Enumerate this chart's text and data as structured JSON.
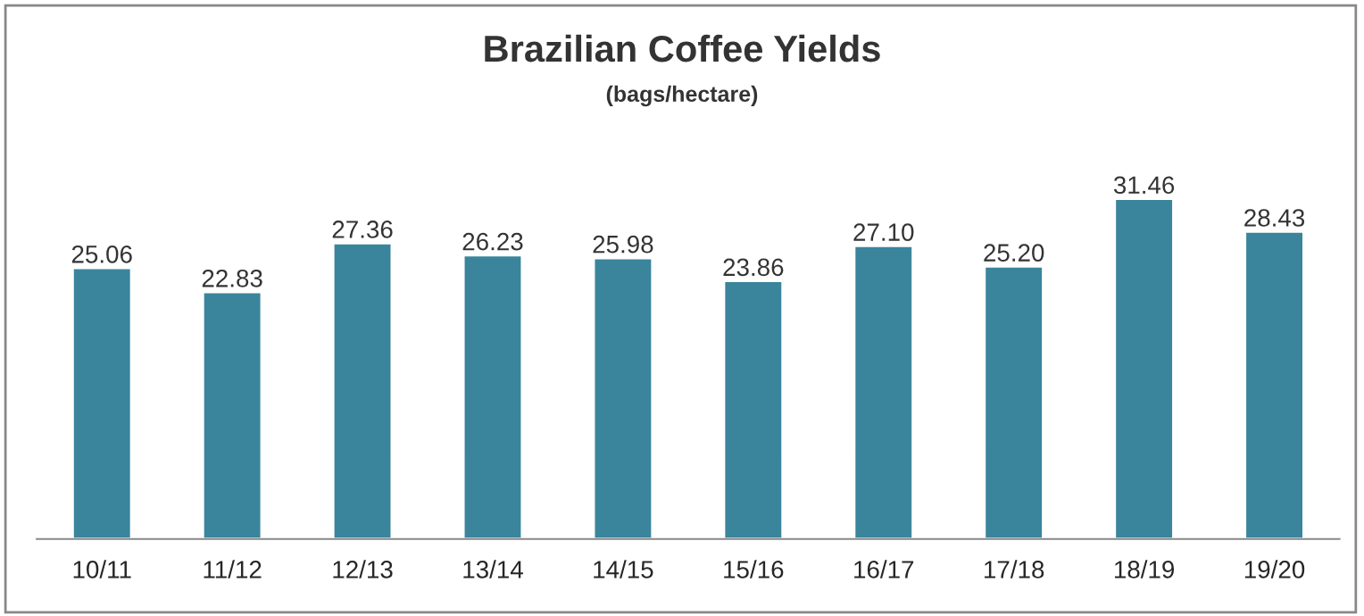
{
  "chart_data": {
    "type": "bar",
    "title": "Brazilian Coffee Yields",
    "subtitle": "(bags/hectare)",
    "categories": [
      "10/11",
      "11/12",
      "12/13",
      "13/14",
      "14/15",
      "15/16",
      "16/17",
      "17/18",
      "18/19",
      "19/20"
    ],
    "values": [
      25.06,
      22.83,
      27.36,
      26.23,
      25.98,
      23.86,
      27.1,
      25.2,
      31.46,
      28.43
    ],
    "value_labels": [
      "25.06",
      "22.83",
      "27.36",
      "26.23",
      "25.98",
      "23.86",
      "27.10",
      "25.20",
      "31.46",
      "28.43"
    ],
    "color": "#3a849c",
    "tick_labels": "x",
    "grid": false,
    "legend": false
  }
}
